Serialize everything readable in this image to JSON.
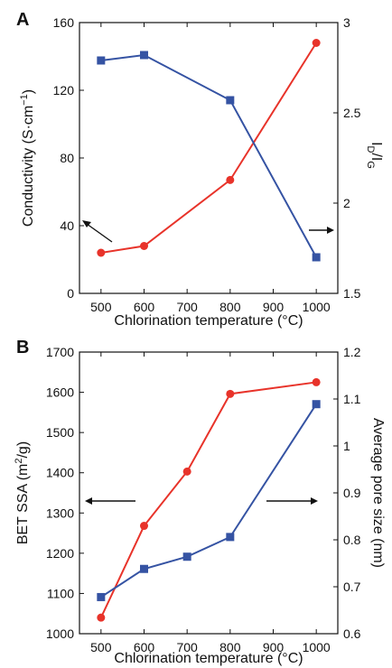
{
  "chart_data": [
    {
      "panel_label": "A",
      "type": "line",
      "xlabel": "Chlorination temperature (°C)",
      "x_ticks": [
        500,
        600,
        700,
        800,
        900,
        1000
      ],
      "xlim": [
        450,
        1050
      ],
      "y_left": {
        "label_main": "Conductivity (S·cm",
        "label_exp": "−1",
        "label_close": ")",
        "lim": [
          0,
          160
        ],
        "ticks": [
          0,
          40,
          80,
          120,
          160
        ]
      },
      "y_right": {
        "label_main": "I",
        "label_sub_d": "D",
        "label_slash": "/I",
        "label_sub_g": "G",
        "lim": [
          1.5,
          3
        ],
        "ticks": [
          1.5,
          2,
          2.5,
          3
        ],
        "tick_labels": [
          "1.5",
          "2",
          "2.5",
          "3"
        ]
      },
      "series": [
        {
          "axis": "left",
          "color": "#e8332a",
          "marker": "circle",
          "x": [
            500,
            600,
            800,
            1000
          ],
          "y": [
            24,
            28,
            67,
            148
          ]
        },
        {
          "axis": "right",
          "color": "#3553a3",
          "marker": "square",
          "x": [
            500,
            600,
            800,
            1000
          ],
          "y": [
            2.79,
            2.82,
            2.57,
            1.7
          ]
        }
      ],
      "annotations": [
        "left-pointing arrow toward left axis",
        "right-pointing arrow toward right axis"
      ]
    },
    {
      "panel_label": "B",
      "type": "line",
      "xlabel": "Chlorination temperature (°C)",
      "x_ticks": [
        500,
        600,
        700,
        800,
        900,
        1000
      ],
      "xlim": [
        450,
        1050
      ],
      "y_left": {
        "label_main": "BET SSA (m",
        "label_exp": "2",
        "label_close": "/g)",
        "lim": [
          1000,
          1700
        ],
        "ticks": [
          1000,
          1100,
          1200,
          1300,
          1400,
          1500,
          1600,
          1700
        ]
      },
      "y_right": {
        "label_main": "Average pore size (nm)",
        "lim": [
          0.6,
          1.2
        ],
        "ticks": [
          0.6,
          0.7,
          0.8,
          0.9,
          1.0,
          1.1,
          1.2
        ],
        "tick_labels": [
          "0.6",
          "0.7",
          "0.8",
          "0.9",
          "1",
          "1.1",
          "1.2"
        ]
      },
      "series": [
        {
          "axis": "left",
          "color": "#e8332a",
          "marker": "circle",
          "x": [
            500,
            600,
            700,
            800,
            1000
          ],
          "y": [
            1040,
            1268,
            1403,
            1596,
            1625
          ]
        },
        {
          "axis": "right",
          "color": "#3553a3",
          "marker": "square",
          "x": [
            500,
            600,
            700,
            800,
            1000
          ],
          "y": [
            0.678,
            0.738,
            0.764,
            0.806,
            1.089
          ]
        }
      ],
      "annotations": [
        "left-pointing arrow toward left axis",
        "right-pointing arrow toward right axis"
      ]
    }
  ]
}
